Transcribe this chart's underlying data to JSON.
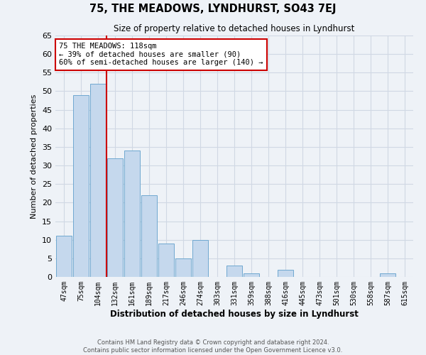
{
  "title": "75, THE MEADOWS, LYNDHURST, SO43 7EJ",
  "subtitle": "Size of property relative to detached houses in Lyndhurst",
  "xlabel": "Distribution of detached houses by size in Lyndhurst",
  "ylabel": "Number of detached properties",
  "bar_labels": [
    "47sqm",
    "75sqm",
    "104sqm",
    "132sqm",
    "161sqm",
    "189sqm",
    "217sqm",
    "246sqm",
    "274sqm",
    "303sqm",
    "331sqm",
    "359sqm",
    "388sqm",
    "416sqm",
    "445sqm",
    "473sqm",
    "501sqm",
    "530sqm",
    "558sqm",
    "587sqm",
    "615sqm"
  ],
  "bar_values": [
    11,
    49,
    52,
    32,
    34,
    22,
    9,
    5,
    10,
    0,
    3,
    1,
    0,
    2,
    0,
    0,
    0,
    0,
    0,
    1,
    0
  ],
  "bar_color": "#c5d8ed",
  "bar_edge_color": "#6fa8d0",
  "marker_bar_index": 2,
  "marker_color": "#cc0000",
  "annotation_text": "75 THE MEADOWS: 118sqm\n← 39% of detached houses are smaller (90)\n60% of semi-detached houses are larger (140) →",
  "annotation_box_color": "#ffffff",
  "annotation_box_edge": "#cc0000",
  "ylim": [
    0,
    65
  ],
  "yticks": [
    0,
    5,
    10,
    15,
    20,
    25,
    30,
    35,
    40,
    45,
    50,
    55,
    60,
    65
  ],
  "grid_color": "#d0d8e4",
  "background_color": "#eef2f7",
  "footer_line1": "Contains HM Land Registry data © Crown copyright and database right 2024.",
  "footer_line2": "Contains public sector information licensed under the Open Government Licence v3.0."
}
